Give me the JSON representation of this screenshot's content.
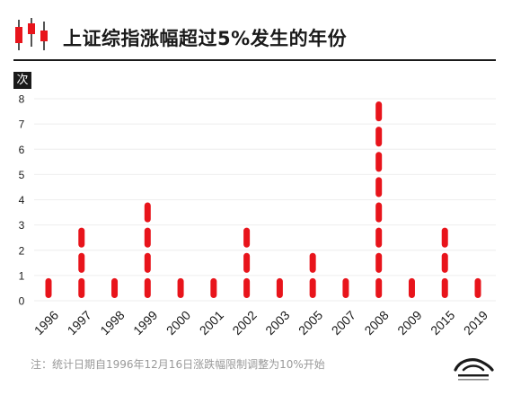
{
  "icons": {
    "header": "candlestick-icon",
    "logo": "wave-logo-icon"
  },
  "colors": {
    "bar": "#e8141b",
    "text": "#1a1a1a",
    "footnote": "#9a9a9a",
    "grid": "#eeeeee"
  },
  "footnote": "注：统计日期自1996年12月16日涨跌幅限制调整为10%开始",
  "chart_data": {
    "type": "bar",
    "title": "上证综指涨幅超过5%发生的年份",
    "xlabel": "",
    "ylabel": "次",
    "categories": [
      "1996",
      "1997",
      "1998",
      "1999",
      "2000",
      "2001",
      "2002",
      "2003",
      "2005",
      "2007",
      "2008",
      "2009",
      "2015",
      "2019"
    ],
    "values": [
      1,
      3,
      1,
      4,
      1,
      1,
      3,
      1,
      2,
      1,
      8,
      1,
      3,
      1
    ],
    "ylim": [
      0,
      8
    ],
    "yticks": [
      0,
      1,
      2,
      3,
      4,
      5,
      6,
      7,
      8
    ],
    "grid": true,
    "legend": "none"
  }
}
